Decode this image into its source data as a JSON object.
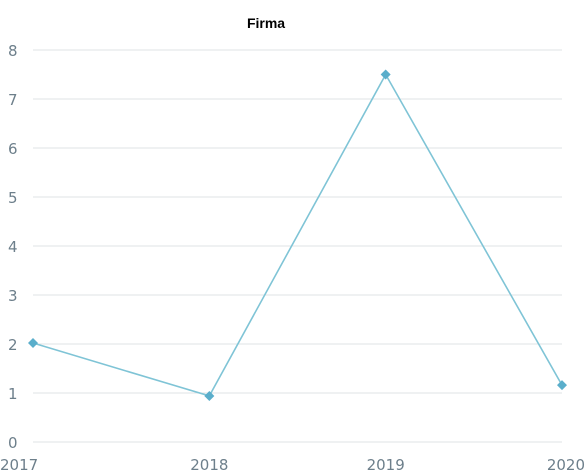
{
  "chart_data": {
    "type": "line",
    "title": "Firma",
    "categories": [
      "2017",
      "2018",
      "2019",
      "2020"
    ],
    "series": [
      {
        "values": [
          2.02,
          0.94,
          7.5,
          1.16
        ]
      }
    ],
    "ylim": [
      0,
      8
    ],
    "yticks": [
      "0",
      "1",
      "2",
      "3",
      "4",
      "5",
      "6",
      "7",
      "8"
    ],
    "xlabel": "",
    "ylabel": "",
    "grid": true,
    "marker": "diamond",
    "colors": {
      "line": "#7fc4d6",
      "marker": "#5aaecb",
      "grid": "#dfe3e6",
      "tick": "#6d7f8b"
    }
  }
}
